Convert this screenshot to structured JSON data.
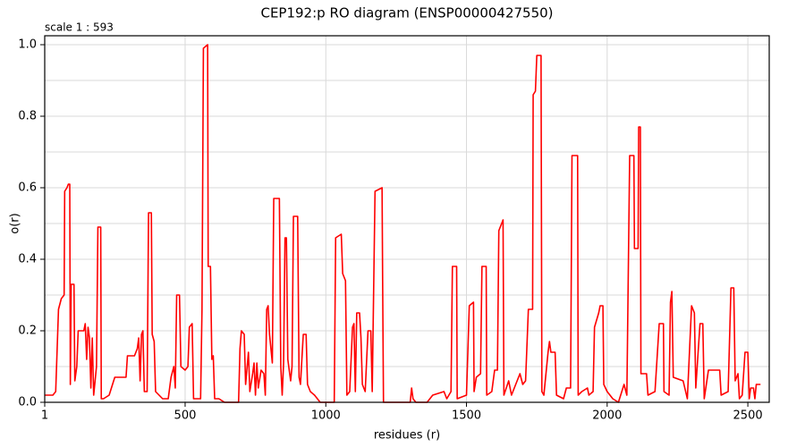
{
  "chart_data": {
    "type": "line",
    "title": "CEP192:p RO diagram (ENSP00000427550)",
    "subtitle": "scale 1 : 593",
    "x_label": "residues (r)",
    "y_label": "o(r)",
    "color": "#ff0000",
    "grid": true,
    "xlim": [
      1,
      2576
    ],
    "ylim": [
      0,
      1.025
    ],
    "xticks": [
      1,
      500,
      1000,
      1500,
      2000,
      2500
    ],
    "yticks": [
      {
        "value": 0,
        "label": "0.0"
      },
      0.2,
      0.4,
      0.6,
      0.8,
      {
        "value": 1,
        "label": "1.0"
      }
    ],
    "yminor": [
      0.1,
      0.3,
      0.5,
      0.7,
      0.9
    ],
    "x": [
      1,
      30,
      40,
      50,
      60,
      70,
      72,
      80,
      85,
      90,
      92,
      95,
      105,
      108,
      115,
      120,
      140,
      145,
      150,
      155,
      160,
      165,
      170,
      175,
      185,
      190,
      200,
      202,
      210,
      230,
      250,
      290,
      295,
      320,
      330,
      335,
      340,
      345,
      350,
      355,
      365,
      370,
      380,
      383,
      390,
      395,
      420,
      440,
      450,
      460,
      465,
      470,
      480,
      485,
      500,
      510,
      515,
      525,
      530,
      555,
      560,
      565,
      580,
      582,
      590,
      595,
      600,
      605,
      620,
      640,
      690,
      695,
      700,
      710,
      715,
      725,
      730,
      740,
      745,
      750,
      755,
      760,
      770,
      780,
      785,
      790,
      795,
      800,
      810,
      815,
      835,
      840,
      845,
      850,
      855,
      860,
      865,
      875,
      880,
      885,
      900,
      905,
      910,
      920,
      930,
      935,
      945,
      960,
      980,
      1000,
      1020,
      1030,
      1035,
      1055,
      1060,
      1070,
      1075,
      1085,
      1095,
      1100,
      1105,
      1110,
      1120,
      1125,
      1130,
      1140,
      1150,
      1160,
      1165,
      1175,
      1200,
      1202,
      1205,
      1260,
      1300,
      1305,
      1310,
      1320,
      1360,
      1380,
      1420,
      1430,
      1445,
      1450,
      1465,
      1467,
      1500,
      1510,
      1525,
      1527,
      1535,
      1550,
      1555,
      1570,
      1572,
      1590,
      1600,
      1610,
      1615,
      1625,
      1630,
      1633,
      1650,
      1660,
      1690,
      1700,
      1710,
      1720,
      1735,
      1737,
      1745,
      1750,
      1765,
      1768,
      1775,
      1790,
      1795,
      1800,
      1815,
      1820,
      1845,
      1855,
      1870,
      1875,
      1895,
      1897,
      1910,
      1930,
      1935,
      1950,
      1955,
      1970,
      1975,
      1985,
      1988,
      2000,
      2010,
      2020,
      2040,
      2060,
      2070,
      2080,
      2095,
      2097,
      2110,
      2112,
      2118,
      2120,
      2140,
      2145,
      2170,
      2185,
      2200,
      2202,
      2220,
      2225,
      2230,
      2235,
      2270,
      2285,
      2300,
      2310,
      2315,
      2330,
      2340,
      2345,
      2360,
      2400,
      2405,
      2430,
      2440,
      2450,
      2455,
      2465,
      2470,
      2480,
      2490,
      2500,
      2505,
      2510,
      2520,
      2525,
      2530,
      2545
    ],
    "values": [
      0.02,
      0.02,
      0.03,
      0.26,
      0.29,
      0.3,
      0.59,
      0.6,
      0.61,
      0.61,
      0.05,
      0.33,
      0.33,
      0.06,
      0.1,
      0.2,
      0.2,
      0.22,
      0.12,
      0.21,
      0.18,
      0.04,
      0.18,
      0.02,
      0.1,
      0.49,
      0.49,
      0.01,
      0.01,
      0.02,
      0.07,
      0.07,
      0.13,
      0.13,
      0.15,
      0.18,
      0.06,
      0.19,
      0.2,
      0.03,
      0.03,
      0.53,
      0.53,
      0.19,
      0.17,
      0.03,
      0.01,
      0.01,
      0.07,
      0.1,
      0.04,
      0.3,
      0.3,
      0.1,
      0.09,
      0.1,
      0.21,
      0.22,
      0.01,
      0.01,
      0.26,
      0.99,
      1.0,
      0.38,
      0.38,
      0.12,
      0.13,
      0.01,
      0.01,
      0.0,
      0.0,
      0.15,
      0.2,
      0.19,
      0.05,
      0.14,
      0.03,
      0.08,
      0.11,
      0.02,
      0.11,
      0.04,
      0.09,
      0.08,
      0.02,
      0.26,
      0.27,
      0.19,
      0.11,
      0.57,
      0.57,
      0.1,
      0.02,
      0.11,
      0.46,
      0.46,
      0.12,
      0.06,
      0.1,
      0.52,
      0.52,
      0.07,
      0.05,
      0.19,
      0.19,
      0.05,
      0.03,
      0.02,
      0.0,
      0.0,
      0.0,
      0.0,
      0.46,
      0.47,
      0.36,
      0.34,
      0.02,
      0.03,
      0.21,
      0.22,
      0.03,
      0.25,
      0.25,
      0.18,
      0.05,
      0.03,
      0.2,
      0.2,
      0.03,
      0.59,
      0.6,
      0.34,
      0.0,
      0.0,
      0.0,
      0.04,
      0.01,
      0.0,
      0.0,
      0.02,
      0.03,
      0.01,
      0.03,
      0.38,
      0.38,
      0.01,
      0.02,
      0.27,
      0.28,
      0.03,
      0.07,
      0.08,
      0.38,
      0.38,
      0.02,
      0.03,
      0.09,
      0.09,
      0.48,
      0.5,
      0.51,
      0.02,
      0.06,
      0.02,
      0.08,
      0.05,
      0.06,
      0.26,
      0.26,
      0.86,
      0.87,
      0.97,
      0.97,
      0.03,
      0.02,
      0.14,
      0.17,
      0.14,
      0.14,
      0.02,
      0.01,
      0.04,
      0.04,
      0.69,
      0.69,
      0.02,
      0.03,
      0.04,
      0.02,
      0.03,
      0.21,
      0.25,
      0.27,
      0.27,
      0.05,
      0.03,
      0.02,
      0.01,
      0.0,
      0.05,
      0.02,
      0.69,
      0.69,
      0.43,
      0.43,
      0.77,
      0.77,
      0.08,
      0.08,
      0.02,
      0.03,
      0.22,
      0.22,
      0.03,
      0.02,
      0.28,
      0.31,
      0.07,
      0.06,
      0.01,
      0.27,
      0.25,
      0.04,
      0.22,
      0.22,
      0.01,
      0.09,
      0.09,
      0.02,
      0.03,
      0.32,
      0.32,
      0.06,
      0.08,
      0.01,
      0.02,
      0.14,
      0.14,
      0.01,
      0.04,
      0.04,
      0.01,
      0.05,
      0.05
    ]
  }
}
